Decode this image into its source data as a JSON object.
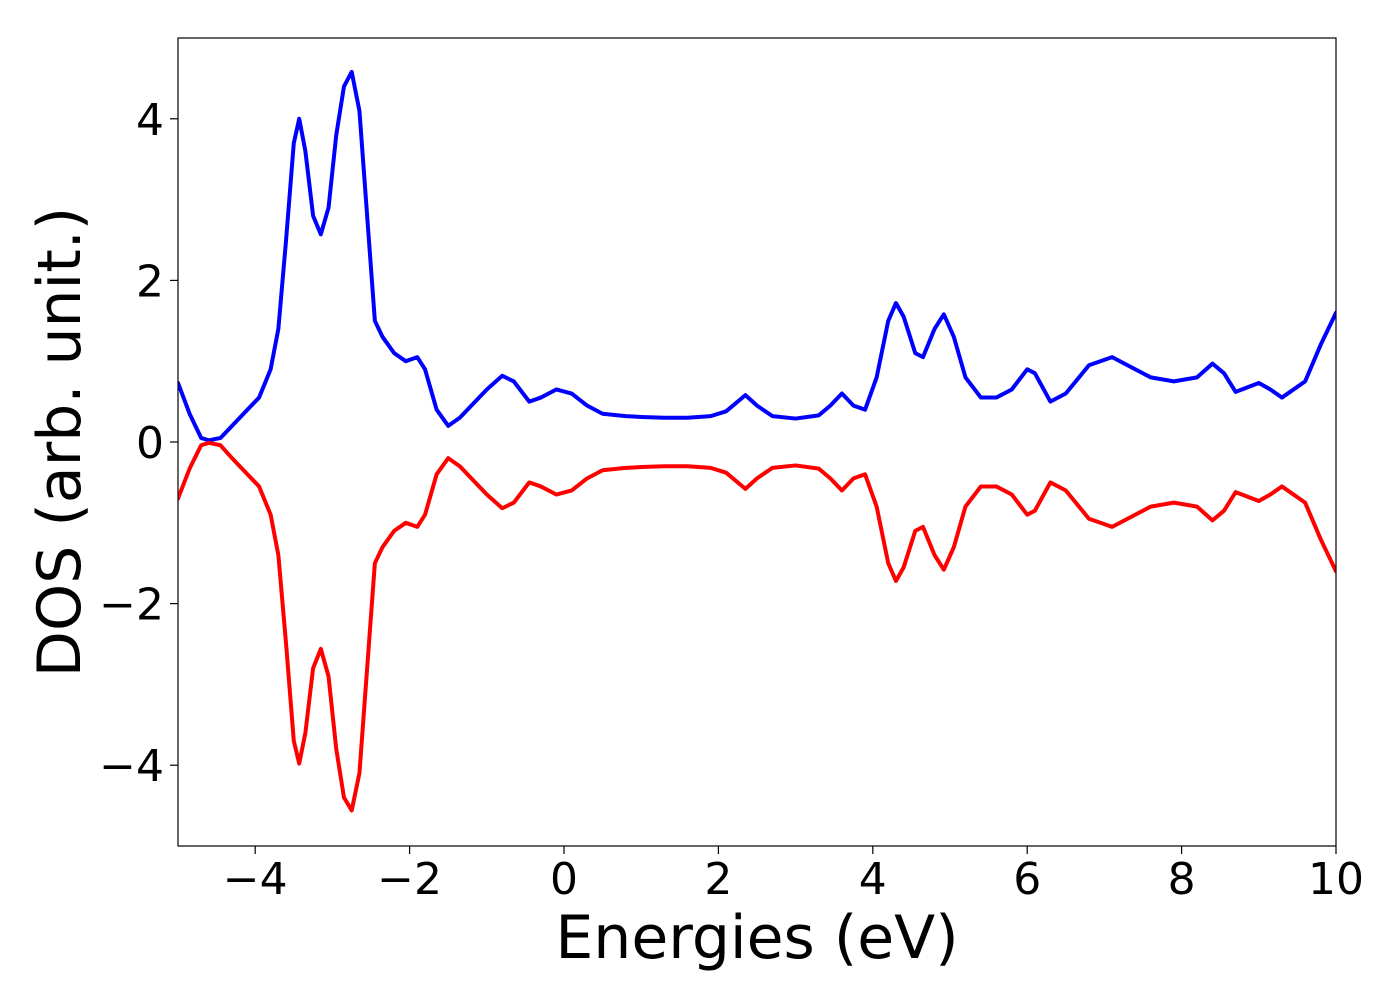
{
  "chart_data": {
    "type": "line",
    "xlabel": "Energies (eV)",
    "ylabel": "DOS (arb. unit.)",
    "x": [
      -5,
      -4.85,
      -4.7,
      -4.6,
      -4.45,
      -4.3,
      -4.1,
      -3.95,
      -3.8,
      -3.7,
      -3.6,
      -3.5,
      -3.43,
      -3.35,
      -3.25,
      -3.15,
      -3.05,
      -2.95,
      -2.85,
      -2.75,
      -2.65,
      -2.55,
      -2.45,
      -2.35,
      -2.2,
      -2.05,
      -1.9,
      -1.8,
      -1.65,
      -1.5,
      -1.35,
      -1.2,
      -1.0,
      -0.8,
      -0.65,
      -0.45,
      -0.3,
      -0.1,
      0.1,
      0.3,
      0.5,
      0.8,
      1.0,
      1.3,
      1.6,
      1.9,
      2.1,
      2.35,
      2.5,
      2.7,
      3.0,
      3.3,
      3.45,
      3.6,
      3.75,
      3.9,
      4.05,
      4.2,
      4.3,
      4.4,
      4.55,
      4.65,
      4.8,
      4.92,
      5.05,
      5.2,
      5.4,
      5.6,
      5.8,
      6.0,
      6.1,
      6.3,
      6.5,
      6.8,
      7.1,
      7.3,
      7.6,
      7.9,
      8.2,
      8.4,
      8.55,
      8.7,
      9.0,
      9.15,
      9.3,
      9.6,
      9.8,
      10.0
    ],
    "series": [
      {
        "color": "#0000ff",
        "values": [
          0.73,
          0.35,
          0.05,
          0.02,
          0.05,
          0.2,
          0.4,
          0.55,
          0.9,
          1.4,
          2.5,
          3.7,
          4.0,
          3.6,
          2.8,
          2.57,
          2.9,
          3.8,
          4.4,
          4.58,
          4.1,
          2.8,
          1.5,
          1.3,
          1.1,
          1.0,
          1.05,
          0.9,
          0.4,
          0.2,
          0.3,
          0.45,
          0.65,
          0.82,
          0.75,
          0.5,
          0.55,
          0.65,
          0.6,
          0.45,
          0.35,
          0.32,
          0.31,
          0.3,
          0.3,
          0.32,
          0.38,
          0.58,
          0.45,
          0.32,
          0.29,
          0.33,
          0.45,
          0.6,
          0.45,
          0.4,
          0.8,
          1.5,
          1.72,
          1.55,
          1.1,
          1.05,
          1.4,
          1.58,
          1.3,
          0.8,
          0.55,
          0.55,
          0.65,
          0.9,
          0.85,
          0.5,
          0.6,
          0.95,
          1.05,
          0.95,
          0.8,
          0.75,
          0.8,
          0.97,
          0.85,
          0.62,
          0.73,
          0.65,
          0.55,
          0.75,
          1.2,
          1.6
        ]
      },
      {
        "color": "#ff0000",
        "values": [
          -0.7,
          -0.33,
          -0.04,
          -0.01,
          -0.04,
          -0.2,
          -0.4,
          -0.55,
          -0.9,
          -1.4,
          -2.5,
          -3.7,
          -3.98,
          -3.6,
          -2.8,
          -2.56,
          -2.9,
          -3.8,
          -4.4,
          -4.56,
          -4.1,
          -2.8,
          -1.5,
          -1.3,
          -1.1,
          -1.0,
          -1.05,
          -0.9,
          -0.4,
          -0.2,
          -0.3,
          -0.45,
          -0.65,
          -0.82,
          -0.75,
          -0.5,
          -0.55,
          -0.65,
          -0.6,
          -0.45,
          -0.35,
          -0.32,
          -0.31,
          -0.3,
          -0.3,
          -0.32,
          -0.38,
          -0.58,
          -0.45,
          -0.32,
          -0.29,
          -0.33,
          -0.45,
          -0.6,
          -0.45,
          -0.4,
          -0.8,
          -1.5,
          -1.72,
          -1.55,
          -1.1,
          -1.05,
          -1.4,
          -1.58,
          -1.3,
          -0.8,
          -0.55,
          -0.55,
          -0.65,
          -0.9,
          -0.85,
          -0.5,
          -0.6,
          -0.95,
          -1.05,
          -0.95,
          -0.8,
          -0.75,
          -0.8,
          -0.97,
          -0.85,
          -0.62,
          -0.73,
          -0.65,
          -0.55,
          -0.75,
          -1.2,
          -1.6
        ]
      }
    ],
    "xlim": [
      -5,
      10
    ],
    "xticks": [
      {
        "value": -4,
        "label": "−4"
      },
      {
        "value": -2,
        "label": "−2"
      },
      0,
      2,
      4,
      6,
      8,
      10
    ],
    "ylim": [
      -5,
      5
    ],
    "yticks": [
      {
        "value": -4,
        "label": "−4"
      },
      {
        "value": -2,
        "label": "−2"
      },
      0,
      2,
      4
    ],
    "grid": false
  }
}
